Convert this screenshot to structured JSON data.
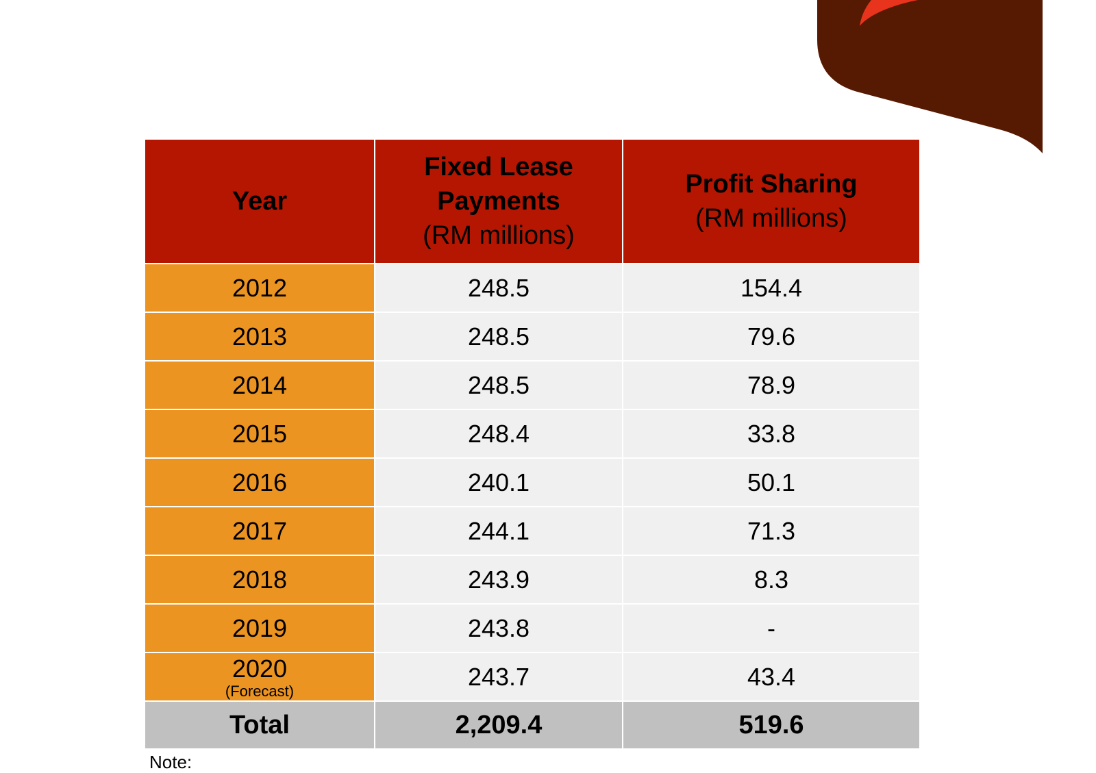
{
  "table": {
    "headers": [
      {
        "bold": "Year",
        "normal": ""
      },
      {
        "bold": "Fixed Lease Payments",
        "normal": "(RM millions)"
      },
      {
        "bold": "Profit Sharing",
        "normal": "(RM millions)"
      }
    ],
    "rows": [
      {
        "year": "2012",
        "sub": "",
        "fixed": "248.5",
        "profit": "154.4"
      },
      {
        "year": "2013",
        "sub": "",
        "fixed": "248.5",
        "profit": "79.6"
      },
      {
        "year": "2014",
        "sub": "",
        "fixed": "248.5",
        "profit": "78.9"
      },
      {
        "year": "2015",
        "sub": "",
        "fixed": "248.4",
        "profit": "33.8"
      },
      {
        "year": "2016",
        "sub": "",
        "fixed": "240.1",
        "profit": "50.1"
      },
      {
        "year": "2017",
        "sub": "",
        "fixed": "244.1",
        "profit": "71.3"
      },
      {
        "year": "2018",
        "sub": "",
        "fixed": "243.9",
        "profit": "8.3"
      },
      {
        "year": "2019",
        "sub": "",
        "fixed": "243.8",
        "profit": "-"
      },
      {
        "year": "2020",
        "sub": "(Forecast)",
        "fixed": "243.7",
        "profit": "43.4"
      }
    ],
    "total": {
      "label": "Total",
      "fixed": "2,209.4",
      "profit": "519.6"
    }
  },
  "note": "Note:",
  "colors": {
    "header": "#b51601",
    "year_cell": "#ec9422",
    "value_cell": "#f0f0f0",
    "total_row": "#c0c0c0",
    "banner_dark": "#561a02",
    "banner_accent": "#e8341c"
  }
}
